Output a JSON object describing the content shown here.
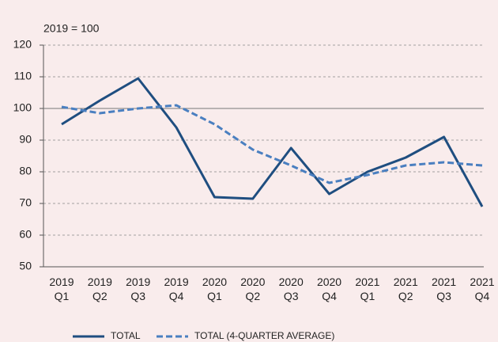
{
  "chart_data": {
    "type": "line",
    "axis_label": "2019 = 100",
    "categories": [
      [
        "2019",
        "Q1"
      ],
      [
        "2019",
        "Q2"
      ],
      [
        "2019",
        "Q3"
      ],
      [
        "2019",
        "Q4"
      ],
      [
        "2020",
        "Q1"
      ],
      [
        "2020",
        "Q2"
      ],
      [
        "2020",
        "Q3"
      ],
      [
        "2020",
        "Q4"
      ],
      [
        "2021",
        "Q1"
      ],
      [
        "2021",
        "Q2"
      ],
      [
        "2021",
        "Q3"
      ],
      [
        "2021",
        "Q4"
      ]
    ],
    "series": [
      {
        "name": "TOTAL",
        "color": "#1f4e80",
        "dashed": false,
        "values": [
          95,
          102.5,
          109.5,
          94,
          72,
          71.5,
          87.5,
          73,
          80,
          84.5,
          91,
          69
        ]
      },
      {
        "name": "TOTAL (4-QUARTER AVERAGE)",
        "color": "#4a7fc0",
        "dashed": true,
        "values": [
          100.5,
          98.5,
          100,
          101,
          95,
          87,
          82,
          76.5,
          79,
          82,
          83,
          82
        ]
      }
    ],
    "reference_line": 100,
    "ylim": [
      50,
      120
    ],
    "yticks": [
      50,
      60,
      70,
      80,
      90,
      100,
      110,
      120
    ],
    "grid": true,
    "legend": "bottom"
  }
}
